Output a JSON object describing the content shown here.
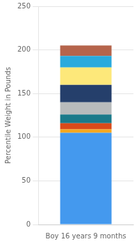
{
  "chart_data": {
    "type": "bar",
    "categories": [
      "Boy 16 years 9 months"
    ],
    "ylabel": "Percentile Weight in Pounds",
    "stacked": true,
    "grid": true,
    "ylim": [
      0,
      250
    ],
    "yticks": [
      0,
      50,
      100,
      150,
      200,
      250
    ],
    "series": [
      {
        "color": "#4499EE",
        "values": [
          105
        ]
      },
      {
        "color": "#F5A820",
        "values": [
          4
        ]
      },
      {
        "color": "#D94A1A",
        "values": [
          7
        ]
      },
      {
        "color": "#1B7A8A",
        "values": [
          10
        ]
      },
      {
        "color": "#B8BBBC",
        "values": [
          14
        ]
      },
      {
        "color": "#253F6B",
        "values": [
          20
        ]
      },
      {
        "color": "#FDE87A",
        "values": [
          20
        ]
      },
      {
        "color": "#29AADD",
        "values": [
          13
        ]
      },
      {
        "color": "#B5644B",
        "values": [
          12
        ]
      }
    ]
  }
}
